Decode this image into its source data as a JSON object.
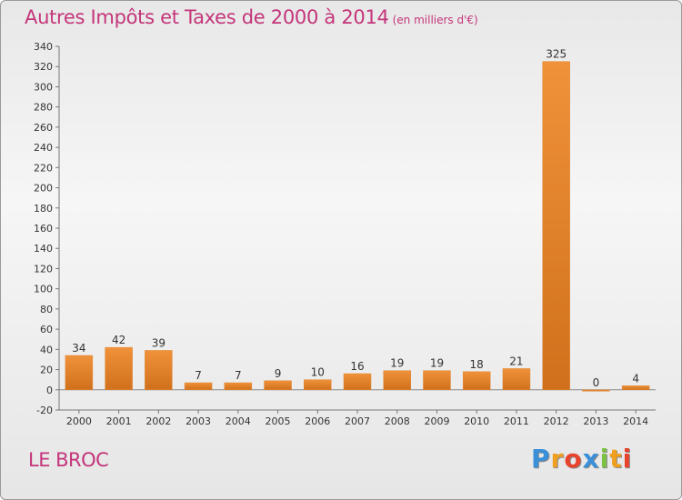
{
  "chart_data": {
    "type": "bar",
    "title": "Autres Impôts et Taxes de 2000 à 2014",
    "subtitle": "(en milliers d'€)",
    "categories": [
      "2000",
      "2001",
      "2002",
      "2003",
      "2004",
      "2005",
      "2006",
      "2007",
      "2008",
      "2009",
      "2010",
      "2011",
      "2012",
      "2013",
      "2014"
    ],
    "values": [
      34,
      42,
      39,
      7,
      7,
      9,
      10,
      16,
      19,
      19,
      18,
      21,
      325,
      0,
      4
    ],
    "ylim": [
      -20,
      340
    ],
    "yticks": [
      -20,
      0,
      20,
      40,
      60,
      80,
      100,
      120,
      140,
      160,
      180,
      200,
      220,
      240,
      260,
      280,
      300,
      320,
      340
    ],
    "xlabel": "",
    "ylabel": "",
    "grid": false,
    "bar_color": "#f0923a",
    "bar_dark": "#d0701c"
  },
  "place": "LE BROC",
  "brand": {
    "letters": [
      "P",
      "r",
      "o",
      "x",
      "i",
      "t",
      "i"
    ],
    "colors": [
      "#3a8fd9",
      "#f0a020",
      "#e8432c",
      "#3a8fd9",
      "#7cc242",
      "#f0a020",
      "#e8432c"
    ]
  }
}
